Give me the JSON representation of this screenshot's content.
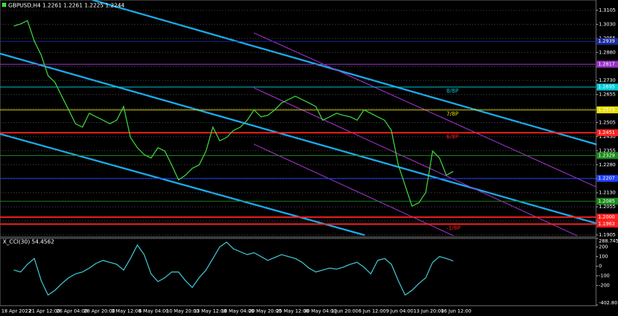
{
  "chart_data": [
    {
      "type": "line",
      "title": "GBPUSD,H4  1.2261 1.2261 1.2225 1.2244",
      "categories": [
        "18 Apr 2022",
        null,
        null,
        null,
        "21 Apr 12:00",
        null,
        null,
        null,
        "26 Apr 04:00",
        null,
        null,
        null,
        "28 Apr 20:00",
        null,
        null,
        null,
        "3 May 12:00",
        null,
        null,
        null,
        "6 May 04:00",
        null,
        null,
        null,
        "10 May 20:00",
        null,
        null,
        null,
        "13 May 12:00",
        null,
        null,
        null,
        "18 May 04:00",
        null,
        null,
        null,
        "20 May 20:00",
        null,
        null,
        null,
        "25 May 12:00",
        null,
        null,
        null,
        "30 May 04:00",
        null,
        null,
        null,
        "1 Jun 20:00",
        null,
        null,
        null,
        "6 Jun 12:00",
        null,
        null,
        null,
        "9 Jun 04:00",
        null,
        null,
        null,
        "13 Jun 20:00",
        null,
        null,
        null,
        "16 Jun 12:00"
      ],
      "values": [
        1.3021,
        1.3032,
        1.305,
        1.294,
        1.2866,
        1.2756,
        1.272,
        1.2646,
        1.2573,
        1.2499,
        1.2481,
        1.2555,
        1.2536,
        1.2518,
        1.2499,
        1.2518,
        1.2591,
        1.2426,
        1.2371,
        1.2334,
        1.2316,
        1.2371,
        1.2353,
        1.2279,
        1.2199,
        1.2224,
        1.2261,
        1.2279,
        1.2353,
        1.2481,
        1.2408,
        1.2426,
        1.2463,
        1.2481,
        1.2518,
        1.2573,
        1.2536,
        1.2544,
        1.2573,
        1.261,
        1.2628,
        1.2646,
        1.2628,
        1.261,
        1.2591,
        1.2518,
        1.2536,
        1.2555,
        1.2544,
        1.2536,
        1.2518,
        1.2573,
        1.2555,
        1.2536,
        1.2518,
        1.2463,
        1.2279,
        1.2169,
        1.2059,
        1.2077,
        1.2132,
        1.2353,
        1.2316,
        1.2224,
        1.2244
      ],
      "color": "#3ddc3d",
      "ylim": [
        1.1894,
        1.316
      ],
      "yticks": [
        1.3105,
        {
          "value": 1.303,
          "label": "1.3030"
        },
        1.2955,
        {
          "value": 1.288,
          "label": "1.2880"
        },
        1.2805,
        {
          "value": 1.273,
          "label": "1.2730"
        },
        1.2655,
        {
          "value": 1.258,
          "label": "1.2580"
        },
        1.2505,
        {
          "value": 1.243,
          "label": "1.2430"
        },
        1.2355,
        {
          "value": 1.228,
          "label": "1.2280"
        },
        1.2205,
        {
          "value": 1.213,
          "label": "1.2130"
        },
        1.2055,
        {
          "value": 1.198,
          "label": "1.1980"
        },
        1.1905
      ],
      "grid": true,
      "levels": [
        {
          "price": 1.2939,
          "color": "#1a2a9a"
        },
        {
          "price": 1.2817,
          "color": "#9b30c8"
        },
        {
          "price": 1.2695,
          "color": "#00c8d8",
          "name": "8/8P"
        },
        {
          "price": 1.2573,
          "color": "#e8e000",
          "name": "7/8P"
        },
        {
          "price": 1.2451,
          "color": "#ff2020",
          "name": "6/8P"
        },
        {
          "price": 1.2329,
          "color": "#1b8a1b"
        },
        {
          "price": 1.2207,
          "color": "#2040ff"
        },
        {
          "price": 1.2085,
          "color": "#1b8a1b"
        },
        {
          "price": {
            "value": 1.2,
            "label": "1.2000"
          },
          "color": "#ff2020"
        },
        {
          "price": 1.1963,
          "color": "#ff2020",
          "name": "-1/8P"
        }
      ]
    },
    {
      "type": "line",
      "title": "X_CCI(30) 54.4562",
      "values": [
        -40,
        -60,
        20,
        80,
        -150,
        -300,
        -250,
        -180,
        -120,
        -80,
        -60,
        -20,
        30,
        60,
        40,
        20,
        -40,
        80,
        220,
        120,
        -80,
        -160,
        -120,
        -60,
        -60,
        -150,
        -220,
        -120,
        -40,
        80,
        200,
        250,
        180,
        150,
        120,
        140,
        100,
        60,
        90,
        120,
        100,
        80,
        40,
        -20,
        -60,
        -40,
        -20,
        -30,
        -10,
        20,
        40,
        -10,
        -80,
        60,
        80,
        20,
        -150,
        -300,
        -250,
        -180,
        -120,
        40,
        100,
        80,
        54
      ],
      "color": "#40c8d8",
      "ylim": [
        -402.8018,
        288.7453
      ],
      "yticks": [
        288.7453,
        200,
        100,
        0,
        -100,
        -200,
        -402.8018
      ]
    }
  ]
}
